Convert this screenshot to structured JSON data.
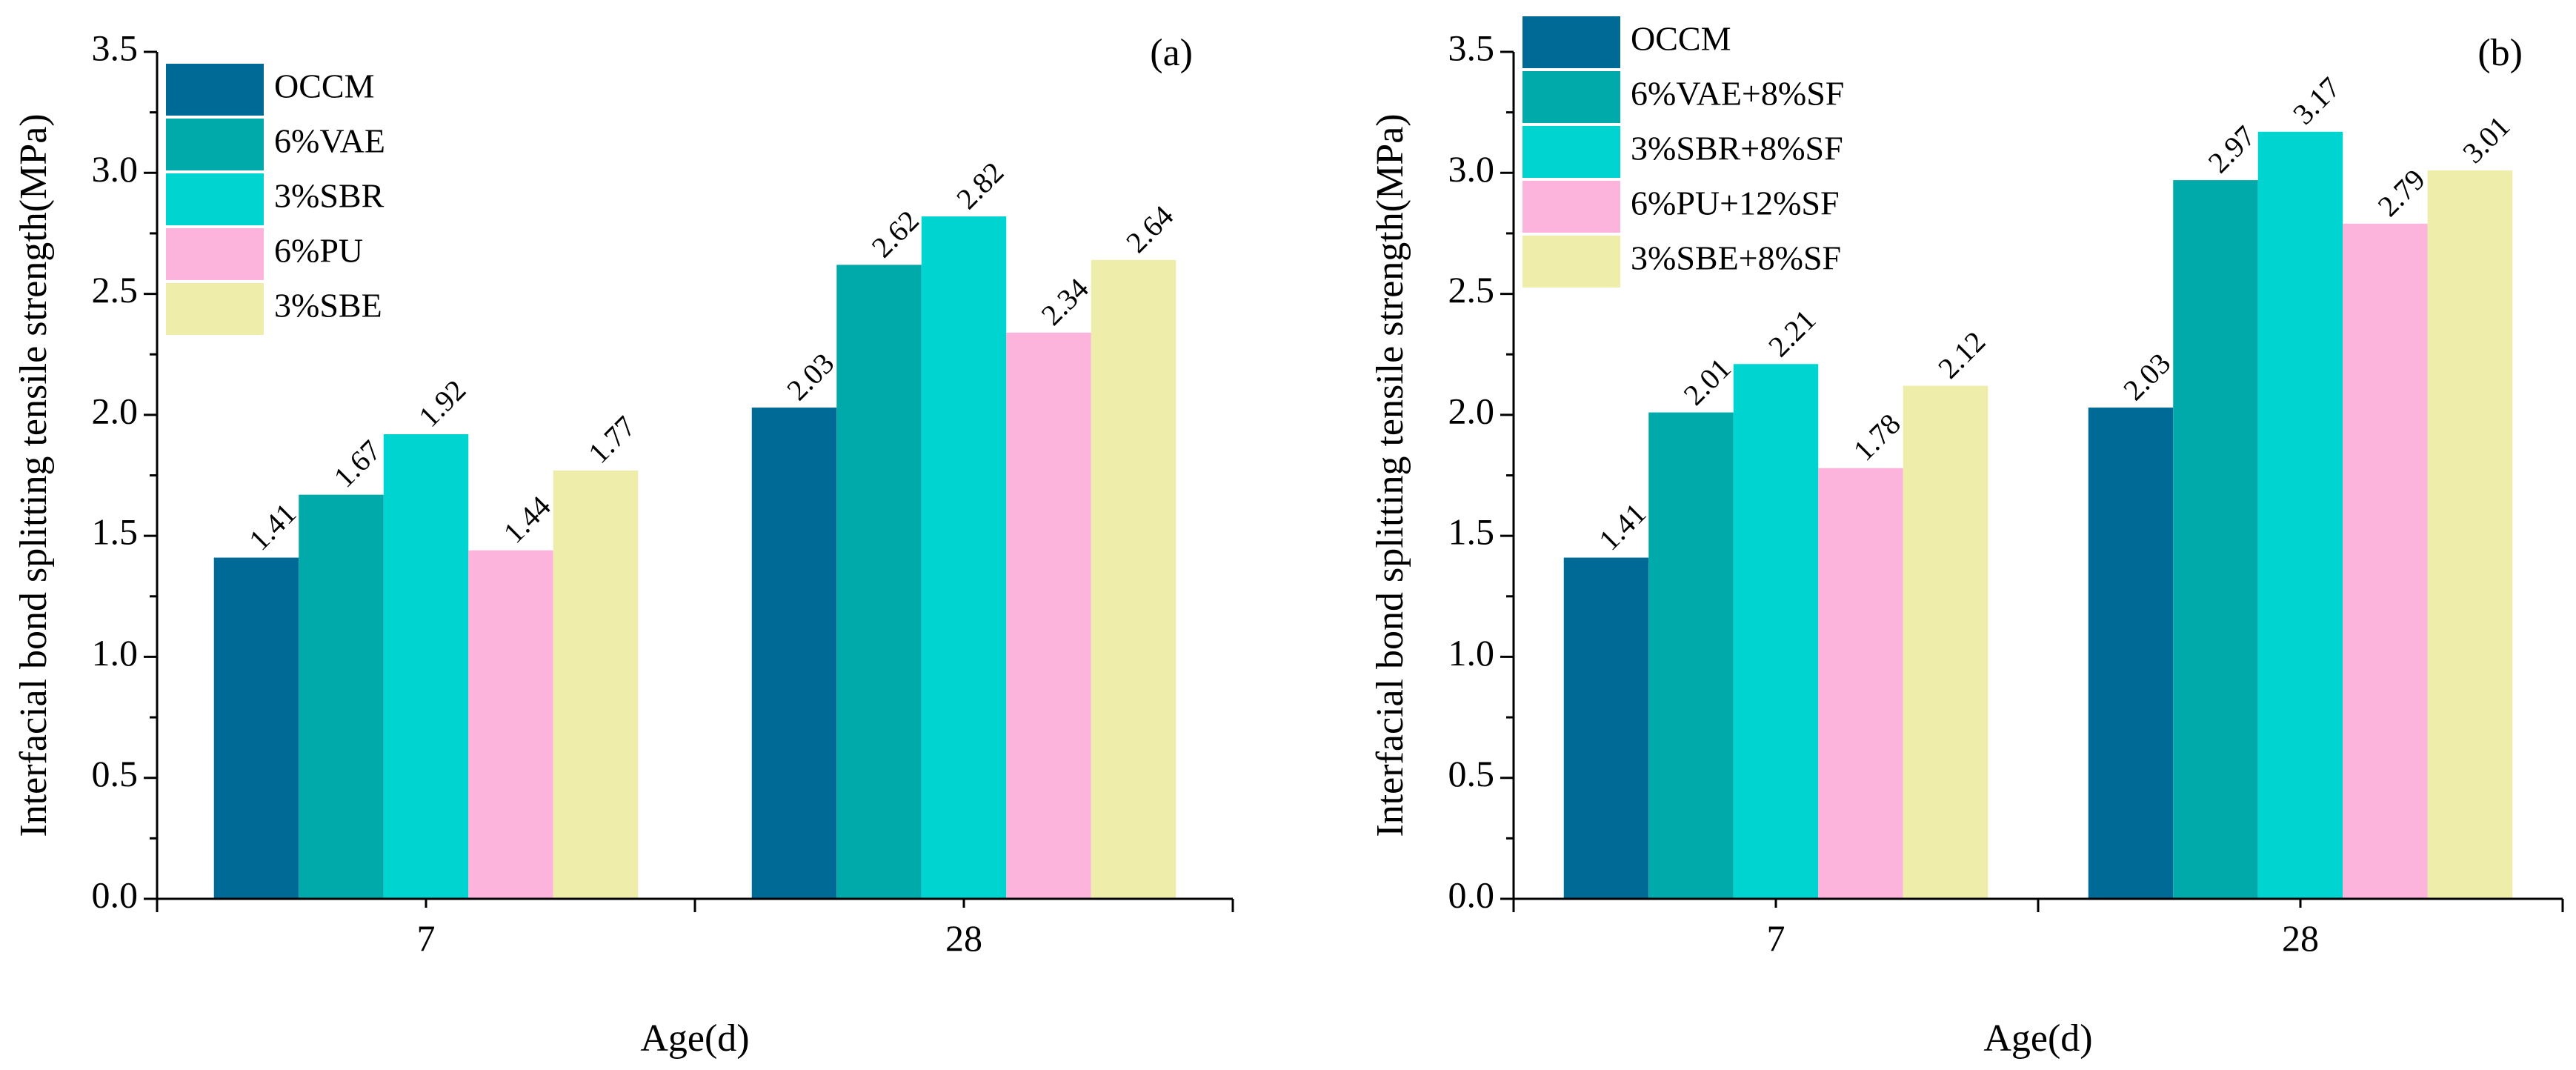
{
  "chart_data": [
    {
      "type": "bar",
      "panel_label": "(a)",
      "categories": [
        "7",
        "28"
      ],
      "series": [
        {
          "name": "OCCM",
          "color": "#006a96",
          "values": [
            1.41,
            2.03
          ]
        },
        {
          "name": "6%VAE",
          "color": "#00aaaa",
          "values": [
            1.67,
            2.62
          ]
        },
        {
          "name": "3%SBR",
          "color": "#00d4d0",
          "values": [
            1.92,
            2.82
          ]
        },
        {
          "name": "6%PU",
          "color": "#fcb4dc",
          "values": [
            1.44,
            2.34
          ]
        },
        {
          "name": "3%SBE",
          "color": "#eeeeaa",
          "values": [
            1.77,
            2.64
          ]
        }
      ],
      "data_labels": [
        [
          "1.41",
          "2.03"
        ],
        [
          "1.67",
          "2.62"
        ],
        [
          "1.92",
          "2.82"
        ],
        [
          "1.44",
          "2.34"
        ],
        [
          "1.77",
          "2.64"
        ]
      ],
      "xlabel": "Age(d)",
      "ylabel": "Interfacial bond splitting tensile strength(MPa)",
      "ylim": [
        0,
        3.5
      ],
      "yticks": [
        "0.0",
        "0.5",
        "1.0",
        "1.5",
        "2.0",
        "2.5",
        "3.0",
        "3.5"
      ],
      "legend": "top-left",
      "grid": false
    },
    {
      "type": "bar",
      "panel_label": "(b)",
      "categories": [
        "7",
        "28"
      ],
      "series": [
        {
          "name": "OCCM",
          "color": "#006a96",
          "values": [
            1.41,
            2.03
          ]
        },
        {
          "name": "6%VAE+8%SF",
          "color": "#00aaaa",
          "values": [
            2.01,
            2.97
          ]
        },
        {
          "name": "3%SBR+8%SF",
          "color": "#00d4d0",
          "values": [
            2.21,
            3.17
          ]
        },
        {
          "name": "6%PU+12%SF",
          "color": "#fcb4dc",
          "values": [
            1.78,
            2.79
          ]
        },
        {
          "name": "3%SBE+8%SF",
          "color": "#eeeeaa",
          "values": [
            2.12,
            3.01
          ]
        }
      ],
      "data_labels": [
        [
          "1.41",
          "2.03"
        ],
        [
          "2.01",
          "2.97"
        ],
        [
          "2.21",
          "3.17"
        ],
        [
          "1.78",
          "2.79"
        ],
        [
          "2.12",
          "3.01"
        ]
      ],
      "xlabel": "Age(d)",
      "ylabel": "Interfacial bond splitting tensile strength(MPa)",
      "ylim": [
        0,
        3.5
      ],
      "yticks": [
        "0.0",
        "0.5",
        "1.0",
        "1.5",
        "2.0",
        "2.5",
        "3.0",
        "3.5"
      ],
      "legend": "top-left",
      "grid": false
    }
  ]
}
